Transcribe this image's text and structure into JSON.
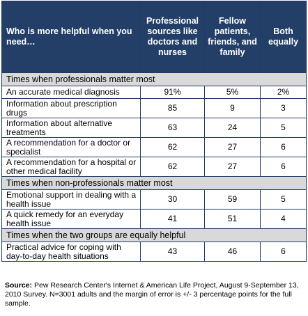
{
  "header": {
    "question": "Who is more helpful when you need…",
    "col_professional": "Professional sources like doctors and nurses",
    "col_fellow": "Fellow patients, friends, and family",
    "col_both": "Both equally"
  },
  "sections": [
    {
      "title": "Times when professionals matter most",
      "rows": [
        {
          "label": "An accurate medical diagnosis",
          "professional": "91%",
          "fellow": "5%",
          "both": "2%"
        },
        {
          "label": "Information about prescription drugs",
          "professional": "85",
          "fellow": "9",
          "both": "3"
        },
        {
          "label": "Information about alternative treatments",
          "professional": "63",
          "fellow": "24",
          "both": "5"
        },
        {
          "label": "A recommendation for a doctor or specialist",
          "professional": "62",
          "fellow": "27",
          "both": "6"
        },
        {
          "label": "A recommendation for a hospital or other medical facility",
          "professional": "62",
          "fellow": "27",
          "both": "6"
        }
      ]
    },
    {
      "title": "Times when non-professionals matter most",
      "rows": [
        {
          "label": "Emotional support in dealing with a health issue",
          "professional": "30",
          "fellow": "59",
          "both": "5"
        },
        {
          "label": "A quick remedy for an everyday health issue",
          "professional": "41",
          "fellow": "51",
          "both": "4"
        }
      ]
    },
    {
      "title": "Times when the two groups are equally helpful",
      "rows": [
        {
          "label": "Practical advice for coping with day-to-day health situations",
          "professional": "43",
          "fellow": "46",
          "both": "6"
        }
      ]
    }
  ],
  "source": {
    "label": "Source:",
    "text": "Pew Research Center's Internet & American Life Project, August 9-September 13, 2010 Survey. N=3001 adults and the margin of error is +/- 3 percentage points for the full sample."
  },
  "colors": {
    "header_bg": "#233f68",
    "section_bg": "#d9d9d9",
    "border": "#1f3b63"
  }
}
